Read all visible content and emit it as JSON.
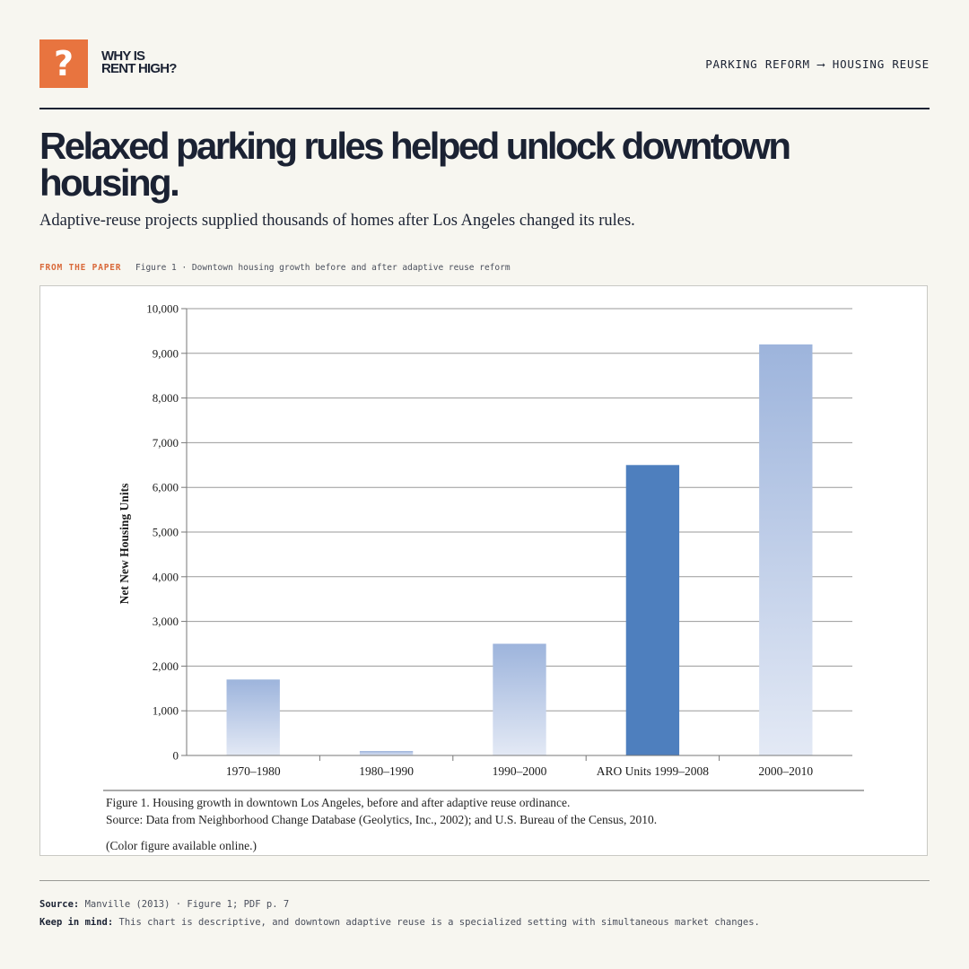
{
  "brand": {
    "logo_glyph": "?",
    "logo_line1": "WHY IS",
    "logo_line2": "RENT HIGH?",
    "accent_color": "#e8743f"
  },
  "topic": "PARKING REFORM ⟶ HOUSING REUSE",
  "headline": "Relaxed parking rules helped unlock downtown housing.",
  "subtitle": "Adaptive-reuse projects supplied thousands of homes after Los Angeles changed its rules.",
  "figure_label": {
    "kicker": "FROM THE PAPER",
    "caption": "Figure 1 · Downtown housing growth before and after adaptive reuse reform"
  },
  "chart_data": {
    "type": "bar",
    "categories": [
      "1970–1980",
      "1980–1990",
      "1990–2000",
      "ARO Units 1999–2008",
      "2000–2010"
    ],
    "values": [
      1700,
      100,
      2500,
      6500,
      9200
    ],
    "highlight_index": 3,
    "bar_color": "#a3b9de",
    "highlight_color": "#4e7fbe",
    "title": "",
    "xlabel": "",
    "ylabel": "Net New Housing Units",
    "ylim": [
      0,
      10000
    ],
    "yticks": [
      0,
      1000,
      2000,
      3000,
      4000,
      5000,
      6000,
      7000,
      8000,
      9000,
      10000
    ],
    "ytick_labels": [
      "0",
      "1,000",
      "2,000",
      "3,000",
      "4,000",
      "5,000",
      "6,000",
      "7,000",
      "8,000",
      "9,000",
      "10,000"
    ],
    "grid": true
  },
  "figure_caption": {
    "line1": "Figure 1. Housing growth in downtown Los Angeles, before and after adaptive reuse ordinance.",
    "line2": "Source: Data from Neighborhood Change Database (Geolytics, Inc., 2002); and U.S. Bureau of the Census, 2010.",
    "line3": "(Color figure available online.)"
  },
  "footer": {
    "source_label": "Source:",
    "source_text": "Manville (2013) · Figure 1; PDF p. 7",
    "note_label": "Keep in mind:",
    "note_text": "This chart is descriptive, and downtown adaptive reuse is a specialized setting with simultaneous market changes."
  }
}
